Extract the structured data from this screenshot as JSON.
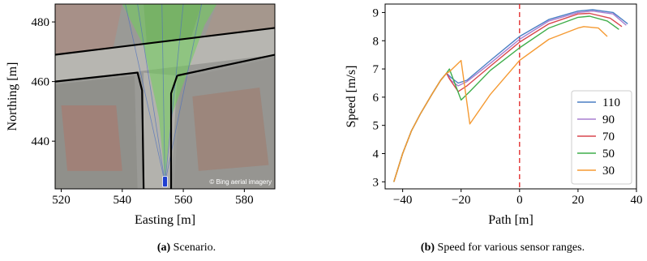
{
  "panel_a": {
    "caption_tag": "(a)",
    "caption_text": "Scenario.",
    "watermark": "© Bing aerial imagery"
  },
  "panel_b": {
    "caption_tag": "(b)",
    "caption_text": "Speed for various sensor ranges."
  },
  "colors": {
    "s110": "#4a7fc4",
    "s90": "#a97fd0",
    "s70": "#d9474f",
    "s50": "#3fae4a",
    "s30": "#f59a32",
    "zero_line": "#e02020",
    "fov": "#6fcf5a"
  },
  "chart_data": [
    {
      "type": "map",
      "xlabel": "Easting [m]",
      "ylabel": "Northing [m]",
      "xlim": [
        518,
        590
      ],
      "ylim": [
        424,
        486
      ],
      "xticks": [
        520,
        540,
        560,
        580
      ],
      "yticks": [
        440,
        460,
        480
      ],
      "roads": [
        {
          "name": "upper-road-edge",
          "points": [
            [
              518,
              469
            ],
            [
              590,
              478
            ]
          ]
        },
        {
          "name": "lower-road-edge-right",
          "points": [
            [
              558,
              462
            ],
            [
              590,
              469
            ]
          ]
        },
        {
          "name": "left-corner-curb",
          "points": [
            [
              518,
              460
            ],
            [
              545,
              463
            ],
            [
              546.5,
              457
            ],
            [
              547,
              424
            ]
          ]
        },
        {
          "name": "right-corner-curb",
          "points": [
            [
              556,
              424
            ],
            [
              556,
              456
            ],
            [
              558,
              462
            ]
          ]
        }
      ],
      "fov_polygon": [
        [
          540,
          486
        ],
        [
          571,
          486
        ],
        [
          567,
          479
        ],
        [
          556,
          448
        ],
        [
          554,
          427
        ],
        [
          552,
          448
        ],
        [
          547,
          472
        ]
      ],
      "vehicle": {
        "x": 554,
        "y": 426
      }
    },
    {
      "type": "line",
      "xlabel": "Path [m]",
      "ylabel": "Speed [m/s]",
      "xlim": [
        -46,
        40
      ],
      "ylim": [
        2.75,
        9.3
      ],
      "xticks": [
        -40,
        -20,
        0,
        20,
        40
      ],
      "yticks": [
        3,
        4,
        5,
        6,
        7,
        8,
        9
      ],
      "legend": "lower-right",
      "vline_x": 0,
      "shared_start": [
        [
          -43,
          3.0
        ],
        [
          -40,
          4.0
        ],
        [
          -37,
          4.8
        ],
        [
          -34,
          5.4
        ],
        [
          -30,
          6.1
        ],
        [
          -27,
          6.6
        ],
        [
          -25,
          6.85
        ]
      ],
      "series": [
        {
          "name": "110",
          "color_key": "s110",
          "points": [
            [
              -23.5,
              6.7
            ],
            [
              -21,
              6.5
            ],
            [
              -18,
              6.6
            ],
            [
              -10,
              7.3
            ],
            [
              0,
              8.15
            ],
            [
              10,
              8.75
            ],
            [
              20,
              9.05
            ],
            [
              25,
              9.1
            ],
            [
              32,
              9.0
            ],
            [
              37,
              8.6
            ]
          ]
        },
        {
          "name": "90",
          "color_key": "s90",
          "points": [
            [
              -23.5,
              6.6
            ],
            [
              -21,
              6.4
            ],
            [
              -18,
              6.55
            ],
            [
              -10,
              7.2
            ],
            [
              0,
              8.05
            ],
            [
              10,
              8.7
            ],
            [
              20,
              9.0
            ],
            [
              25,
              9.05
            ],
            [
              32,
              8.95
            ],
            [
              36.5,
              8.55
            ]
          ]
        },
        {
          "name": "70",
          "color_key": "s70",
          "points": [
            [
              -24,
              6.65
            ],
            [
              -21,
              6.2
            ],
            [
              -18,
              6.4
            ],
            [
              -10,
              7.1
            ],
            [
              0,
              7.95
            ],
            [
              10,
              8.6
            ],
            [
              20,
              8.95
            ],
            [
              24,
              8.97
            ],
            [
              31,
              8.8
            ],
            [
              35,
              8.5
            ]
          ]
        },
        {
          "name": "50",
          "color_key": "s50",
          "points": [
            [
              -24,
              7.0
            ],
            [
              -20,
              5.9
            ],
            [
              -17,
              6.2
            ],
            [
              -10,
              6.95
            ],
            [
              0,
              7.75
            ],
            [
              10,
              8.45
            ],
            [
              20,
              8.83
            ],
            [
              24,
              8.87
            ],
            [
              30,
              8.7
            ],
            [
              34,
              8.4
            ]
          ]
        },
        {
          "name": "30",
          "color_key": "s30",
          "points": [
            [
              -24,
              6.9
            ],
            [
              -20,
              7.3
            ],
            [
              -17,
              5.05
            ],
            [
              -10,
              6.1
            ],
            [
              0,
              7.3
            ],
            [
              10,
              8.05
            ],
            [
              20,
              8.45
            ],
            [
              22,
              8.5
            ],
            [
              27,
              8.45
            ],
            [
              30,
              8.15
            ]
          ]
        }
      ]
    }
  ]
}
